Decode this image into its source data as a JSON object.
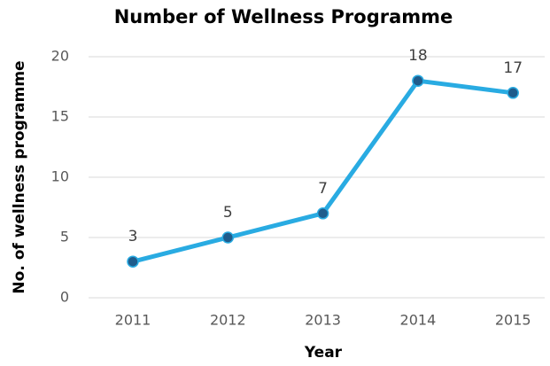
{
  "chart_data": {
    "type": "line",
    "title": "Number of Wellness Programme",
    "x_label": "Year",
    "y_label": "No. of wellness programme",
    "categories": [
      "2011",
      "2012",
      "2013",
      "2014",
      "2015"
    ],
    "values": [
      3,
      5,
      7,
      18,
      17
    ],
    "color": "#29abe2",
    "marker_color": "#1f5c8c",
    "ylim": [
      0,
      20
    ],
    "yticks": [
      0,
      5,
      10,
      15,
      20
    ],
    "grid": true
  }
}
